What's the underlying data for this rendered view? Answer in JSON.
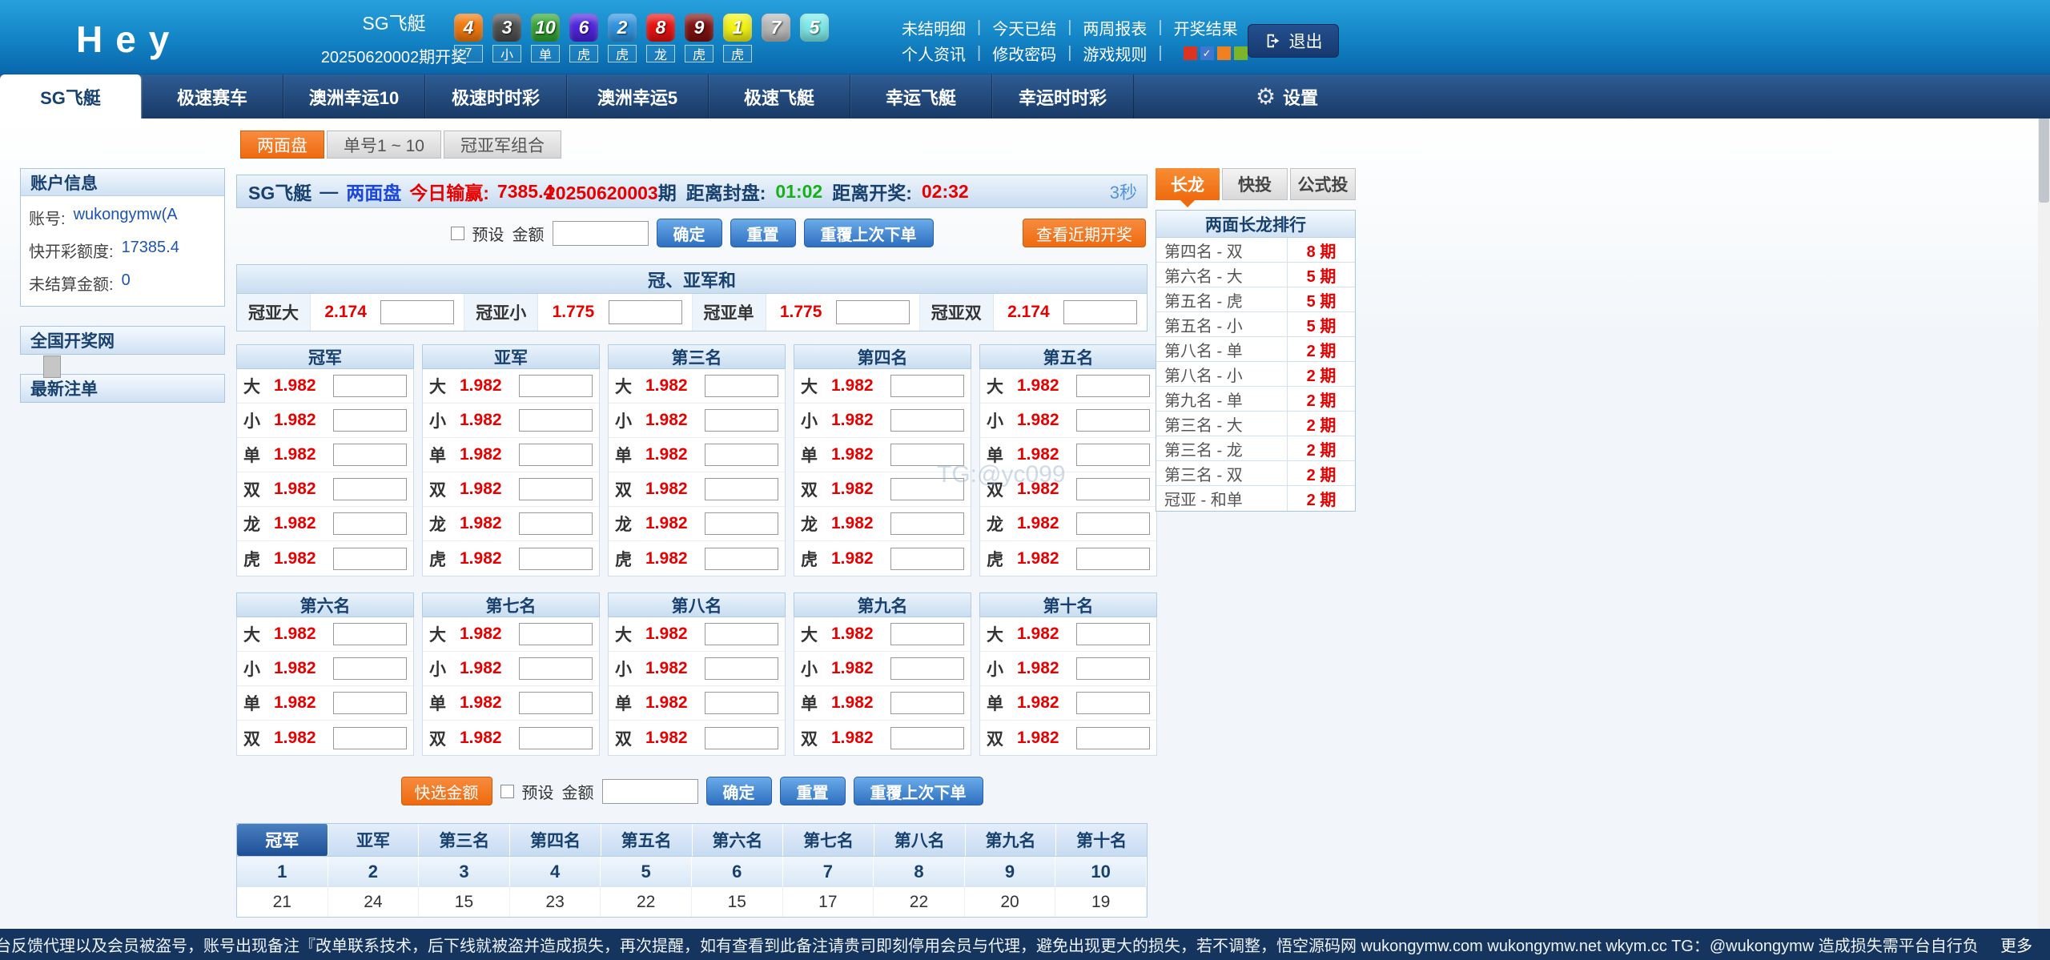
{
  "header": {
    "logo": "Hey",
    "game_name": "SG飞艇",
    "draw_label": "20250620002期开奖",
    "balls": [
      {
        "n": "4",
        "c": "#f1790f"
      },
      {
        "n": "3",
        "c": "#4f4f4f"
      },
      {
        "n": "10",
        "c": "#32a532"
      },
      {
        "n": "6",
        "c": "#4f23dd"
      },
      {
        "n": "2",
        "c": "#2f94e0"
      },
      {
        "n": "8",
        "c": "#ea1010"
      },
      {
        "n": "9",
        "c": "#801111"
      },
      {
        "n": "1",
        "c": "#f3f315"
      },
      {
        "n": "7",
        "c": "#b9b9b9"
      },
      {
        "n": "5",
        "c": "#7deaea"
      }
    ],
    "result_labels": [
      "7",
      "小",
      "单",
      "虎",
      "虎",
      "龙",
      "虎",
      "虎"
    ],
    "links_row1": [
      "未结明细",
      "今天已结",
      "两周报表",
      "开奖结果"
    ],
    "links_row2": [
      "个人资讯",
      "修改密码",
      "游戏规则"
    ],
    "palette_squares": [
      {
        "color": "#dd3322",
        "checked": false
      },
      {
        "color": "#3f76cf",
        "checked": true
      },
      {
        "color": "#f08121",
        "checked": false
      },
      {
        "color": "#7cb42a",
        "checked": false
      }
    ],
    "logout": "退出"
  },
  "nav": {
    "tabs": [
      "SG飞艇",
      "极速赛车",
      "澳洲幸运10",
      "极速时时彩",
      "澳洲幸运5",
      "极速飞艇",
      "幸运飞艇",
      "幸运时时彩"
    ],
    "active_tab": "SG飞艇",
    "settings": "设置"
  },
  "subtabs": [
    {
      "label": "两面盘",
      "active": true
    },
    {
      "label": "单号1 ~ 10",
      "active": false
    },
    {
      "label": "冠亚军组合",
      "active": false
    }
  ],
  "sidebar": {
    "account": {
      "title": "账户信息",
      "rows": [
        {
          "label": "账号:",
          "value": "wukongymw(A"
        },
        {
          "label": "快开彩额度:",
          "value": "17385.4"
        },
        {
          "label": "未结算金额:",
          "value": "0"
        }
      ]
    },
    "links": [
      "全国开奖网",
      "最新注单"
    ]
  },
  "main": {
    "title": {
      "game": "SG飞艇",
      "dash": "—",
      "mode": "两面盘",
      "win_label": "今日输赢:",
      "win_value": "7385.4",
      "period": "20250620003",
      "period_suffix": "期",
      "close_label": "距离封盘:",
      "close_time": "01:02",
      "open_label": "距离开奖:",
      "open_time": "02:32",
      "seconds": "3秒"
    },
    "controls": {
      "preset": "预设",
      "amount": "金额",
      "confirm": "确定",
      "reset": "重置",
      "repeat": "重覆上次下单",
      "recent": "查看近期开奖",
      "quick": "快选金额"
    },
    "sum": {
      "title": "冠、亚军和",
      "cells": [
        {
          "label": "冠亚大",
          "odds": "2.174"
        },
        {
          "label": "冠亚小",
          "odds": "1.775"
        },
        {
          "label": "冠亚单",
          "odds": "1.775"
        },
        {
          "label": "冠亚双",
          "odds": "2.174"
        }
      ]
    },
    "tables1": {
      "headers": [
        "冠军",
        "亚军",
        "第三名",
        "第四名",
        "第五名"
      ],
      "row_labels": [
        "大",
        "小",
        "单",
        "双",
        "龙",
        "虎"
      ],
      "odds": "1.982"
    },
    "tables2": {
      "headers": [
        "第六名",
        "第七名",
        "第八名",
        "第九名",
        "第十名"
      ],
      "row_labels": [
        "大",
        "小",
        "单",
        "双"
      ],
      "odds": "1.982"
    },
    "history": {
      "tabs": [
        "冠军",
        "亚军",
        "第三名",
        "第四名",
        "第五名",
        "第六名",
        "第七名",
        "第八名",
        "第九名",
        "第十名"
      ],
      "active_tab": "冠军",
      "numbers": [
        "1",
        "2",
        "3",
        "4",
        "5",
        "6",
        "7",
        "8",
        "9",
        "10"
      ],
      "counts": [
        "21",
        "24",
        "15",
        "23",
        "22",
        "15",
        "17",
        "22",
        "20",
        "19"
      ]
    }
  },
  "dragon": {
    "tabs": [
      {
        "label": "长龙",
        "active": true
      },
      {
        "label": "快投",
        "active": false
      },
      {
        "label": "公式投",
        "active": false
      }
    ],
    "title": "两面长龙排行",
    "rows": [
      {
        "name": "第四名 - 双",
        "count": "8 期"
      },
      {
        "name": "第六名 - 大",
        "count": "5 期"
      },
      {
        "name": "第五名 - 虎",
        "count": "5 期"
      },
      {
        "name": "第五名 - 小",
        "count": "5 期"
      },
      {
        "name": "第八名 - 单",
        "count": "2 期"
      },
      {
        "name": "第八名 - 小",
        "count": "2 期"
      },
      {
        "name": "第九名 - 单",
        "count": "2 期"
      },
      {
        "name": "第三名 - 大",
        "count": "2 期"
      },
      {
        "name": "第三名 - 龙",
        "count": "2 期"
      },
      {
        "name": "第三名 - 双",
        "count": "2 期"
      },
      {
        "name": "冠亚 - 和单",
        "count": "2 期"
      }
    ]
  },
  "watermark": "TG:@yc099",
  "footer": {
    "text": "台反馈代理以及会员被盗号，账号出现备注『改单联系技术，后下线就被盗并造成损失，再次提醒，如有查看到此备注请贵司即刻停用会员与代理，避免出现更大的损失，若不调整，悟空源码网 wukongymw.com wukongymw.net wkym.cc TG：@wukongymw 造成损失需平台自行负责，我司一概不负责",
    "more": "更多"
  }
}
